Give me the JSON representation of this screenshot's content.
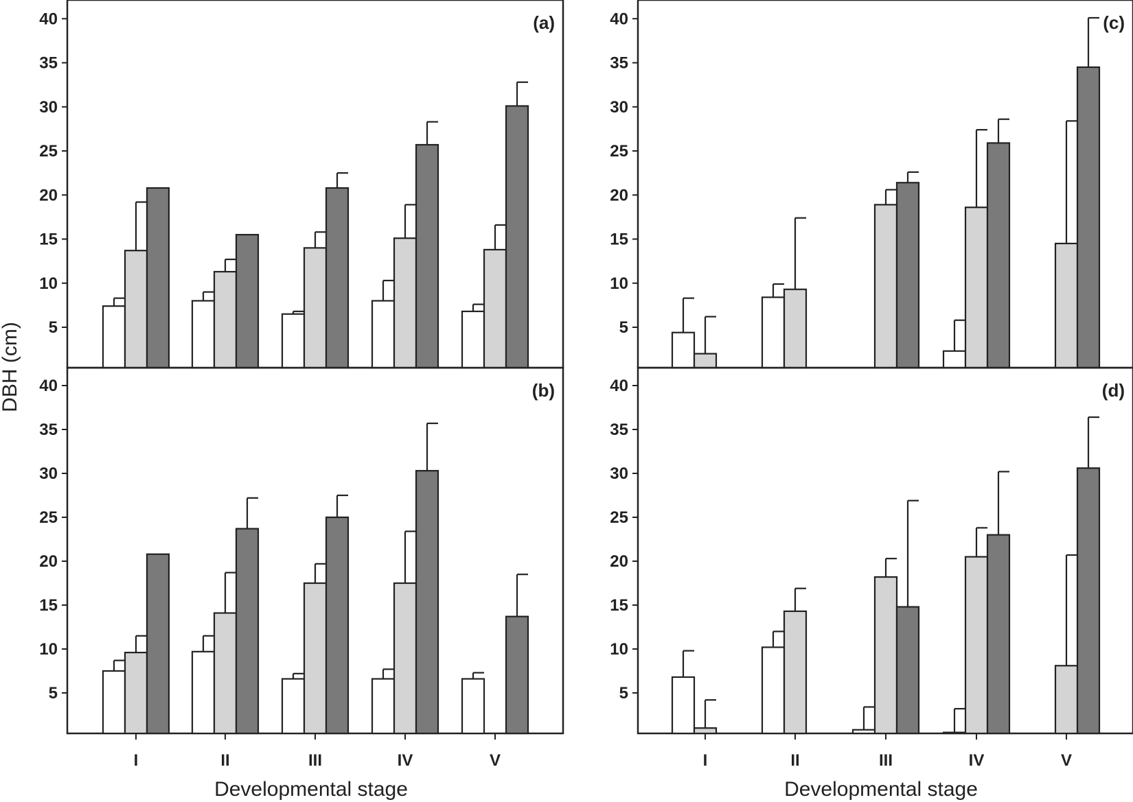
{
  "chart_data": {
    "type": "bar",
    "ylabel": "DBH (cm)",
    "xlabel": "Developmental stage",
    "categories": [
      "I",
      "II",
      "III",
      "IV",
      "V"
    ],
    "yticks": [
      5,
      10,
      15,
      20,
      25,
      30,
      35,
      40
    ],
    "ylim": [
      0.5,
      40.5
    ],
    "error_bars": "upper",
    "series_colors": [
      "#ffffff",
      "#d4d4d4",
      "#7a7a7a"
    ],
    "panels": [
      {
        "label": "(a)",
        "series": [
          {
            "values": [
              7.4,
              8.0,
              6.5,
              8.0,
              6.8
            ],
            "errors": [
              0.9,
              1.0,
              0.3,
              2.3,
              0.8
            ]
          },
          {
            "values": [
              13.7,
              11.3,
              14.0,
              15.1,
              13.8
            ],
            "errors": [
              5.5,
              1.4,
              1.8,
              3.8,
              2.8
            ]
          },
          {
            "values": [
              20.8,
              15.5,
              20.8,
              25.7,
              30.1
            ],
            "errors": [
              0.0,
              0.0,
              1.7,
              2.6,
              2.7
            ]
          }
        ]
      },
      {
        "label": "(b)",
        "series": [
          {
            "values": [
              7.5,
              9.7,
              6.6,
              6.6,
              6.6
            ],
            "errors": [
              1.2,
              1.8,
              0.6,
              1.1,
              0.7
            ]
          },
          {
            "values": [
              9.6,
              14.1,
              17.5,
              17.5,
              null
            ],
            "errors": [
              1.9,
              4.6,
              2.2,
              5.9,
              null
            ]
          },
          {
            "values": [
              20.8,
              23.7,
              25.0,
              30.3,
              13.7
            ],
            "errors": [
              0.0,
              3.5,
              2.5,
              5.4,
              4.8
            ]
          }
        ]
      },
      {
        "label": "(c)",
        "series": [
          {
            "values": [
              4.4,
              8.4,
              null,
              2.3,
              null
            ],
            "errors": [
              3.9,
              1.5,
              null,
              3.5,
              null
            ]
          },
          {
            "values": [
              2.0,
              9.3,
              18.9,
              18.6,
              14.5
            ],
            "errors": [
              4.2,
              8.1,
              1.7,
              8.8,
              13.9
            ]
          },
          {
            "values": [
              null,
              null,
              21.4,
              25.9,
              34.5
            ],
            "errors": [
              null,
              null,
              1.2,
              2.7,
              5.6
            ]
          }
        ]
      },
      {
        "label": "(d)",
        "series": [
          {
            "values": [
              6.8,
              10.2,
              0.8,
              0.5,
              null
            ],
            "errors": [
              3.0,
              1.8,
              2.6,
              2.7,
              null
            ]
          },
          {
            "values": [
              1.0,
              14.3,
              18.2,
              20.5,
              8.1
            ],
            "errors": [
              3.2,
              2.6,
              2.1,
              3.3,
              12.6
            ]
          },
          {
            "values": [
              null,
              null,
              14.8,
              23.0,
              30.6
            ],
            "errors": [
              null,
              null,
              12.1,
              7.2,
              5.8
            ]
          }
        ]
      }
    ]
  }
}
